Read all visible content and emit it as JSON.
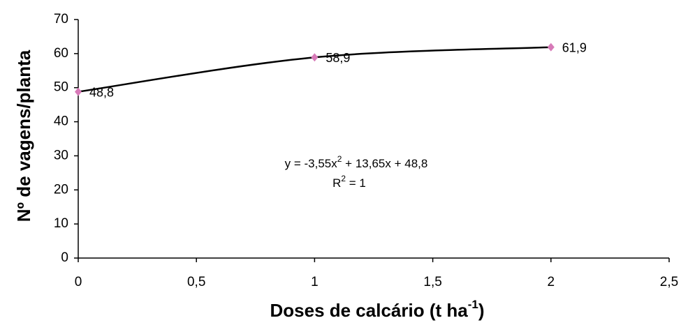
{
  "chart_data": {
    "type": "line",
    "x_label": [
      "Doses de calcário (t ha",
      "-1",
      ")"
    ],
    "y_label": "Nº de vagens/planta",
    "annotations": [
      [
        "y = -3,55x",
        "2",
        " + 13,65x + 48,8"
      ],
      [
        "R",
        "2",
        " = 1"
      ]
    ],
    "x": [
      0,
      1,
      2
    ],
    "series": [
      {
        "values": [
          48.8,
          58.9,
          61.9
        ],
        "value_labels": [
          "48,8",
          "58,9",
          "61,9"
        ],
        "color": "#000000",
        "marker_color": "#d77ab8"
      }
    ],
    "xlim": [
      0,
      2.5
    ],
    "xticks": [
      0,
      {
        "value": 0.5,
        "label": "0,5"
      },
      1,
      {
        "value": 1.5,
        "label": "1,5"
      },
      2,
      {
        "value": 2.5,
        "label": "2,5"
      }
    ],
    "ylim": [
      0,
      70
    ],
    "yticks": [
      0,
      10,
      20,
      30,
      40,
      50,
      60,
      70
    ],
    "grid": false
  }
}
